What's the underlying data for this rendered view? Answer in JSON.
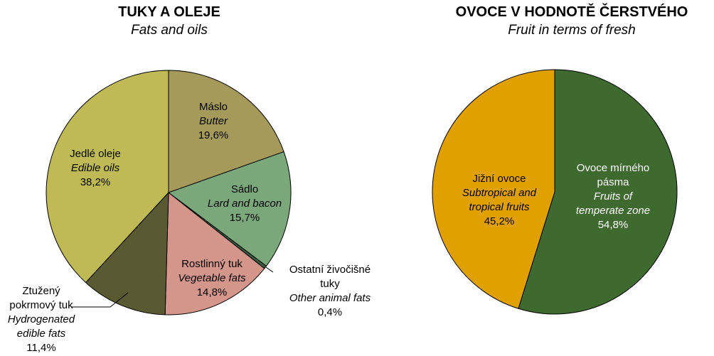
{
  "chart_data": [
    {
      "type": "pie",
      "title": "TUKY A OLEJE",
      "subtitle": "Fats and oils",
      "slices": [
        {
          "label": "Máslo",
          "label_en": "Butter",
          "value": 19.6,
          "value_label": "19,6%",
          "color": "#A69A5B"
        },
        {
          "label": "Sádlo",
          "label_en": "Lard and bacon",
          "value": 15.7,
          "value_label": "15,7%",
          "color": "#7AA87A"
        },
        {
          "label": "Ostatní živočišné tuky",
          "label_en": "Other animal fats",
          "value": 0.4,
          "value_label": "0,4%",
          "color": "#3C5A3C"
        },
        {
          "label": "Rostlinný tuk",
          "label_en": "Vegetable fats",
          "value": 14.8,
          "value_label": "14,8%",
          "color": "#D4968A"
        },
        {
          "label": "Ztužený pokrmový tuk",
          "label_en": "Hydrogenated edible fats",
          "value": 11.4,
          "value_label": "11,4%",
          "color": "#5A5A32"
        },
        {
          "label": "Jedlé oleje",
          "label_en": "Edible oils",
          "value": 38.2,
          "value_label": "38,2%",
          "color": "#BFBA55"
        }
      ]
    },
    {
      "type": "pie",
      "title": "OVOCE V HODNOTĚ ČERSTVÉHO",
      "subtitle": "Fruit in terms of fresh",
      "slices": [
        {
          "label": "Ovoce mírného pásma",
          "label_en": "Fruits of temperate zone",
          "value": 54.8,
          "value_label": "54,8%",
          "color": "#3F6A2F"
        },
        {
          "label": "Jižní ovoce",
          "label_en": "Subtropical and tropical fruits",
          "value": 45.2,
          "value_label": "45,2%",
          "color": "#E0A000"
        }
      ]
    }
  ],
  "labels": {
    "fats": {
      "butter": [
        "Máslo",
        "Butter",
        "19,6%"
      ],
      "lard": [
        "Sádlo",
        "Lard and bacon",
        "15,7%"
      ],
      "other": [
        "Ostatní živočišné",
        "tuky",
        "Other animal fats",
        "0,4%"
      ],
      "veg": [
        "Rostlinný tuk",
        "Vegetable fats",
        "14,8%"
      ],
      "hydro": [
        "Ztužený",
        "pokrmový tuk",
        "Hydrogenated",
        "edible fats",
        "11,4%"
      ],
      "oils": [
        "Jedlé oleje",
        "Edible oils",
        "38,2%"
      ]
    },
    "fruit": {
      "temperate": [
        "Ovoce mírného",
        "pásma",
        "Fruits of",
        "temperate zone",
        "54,8%"
      ],
      "subtropical": [
        "Jižní ovoce",
        "Subtropical and",
        "tropical fruits",
        "45,2%"
      ]
    }
  }
}
